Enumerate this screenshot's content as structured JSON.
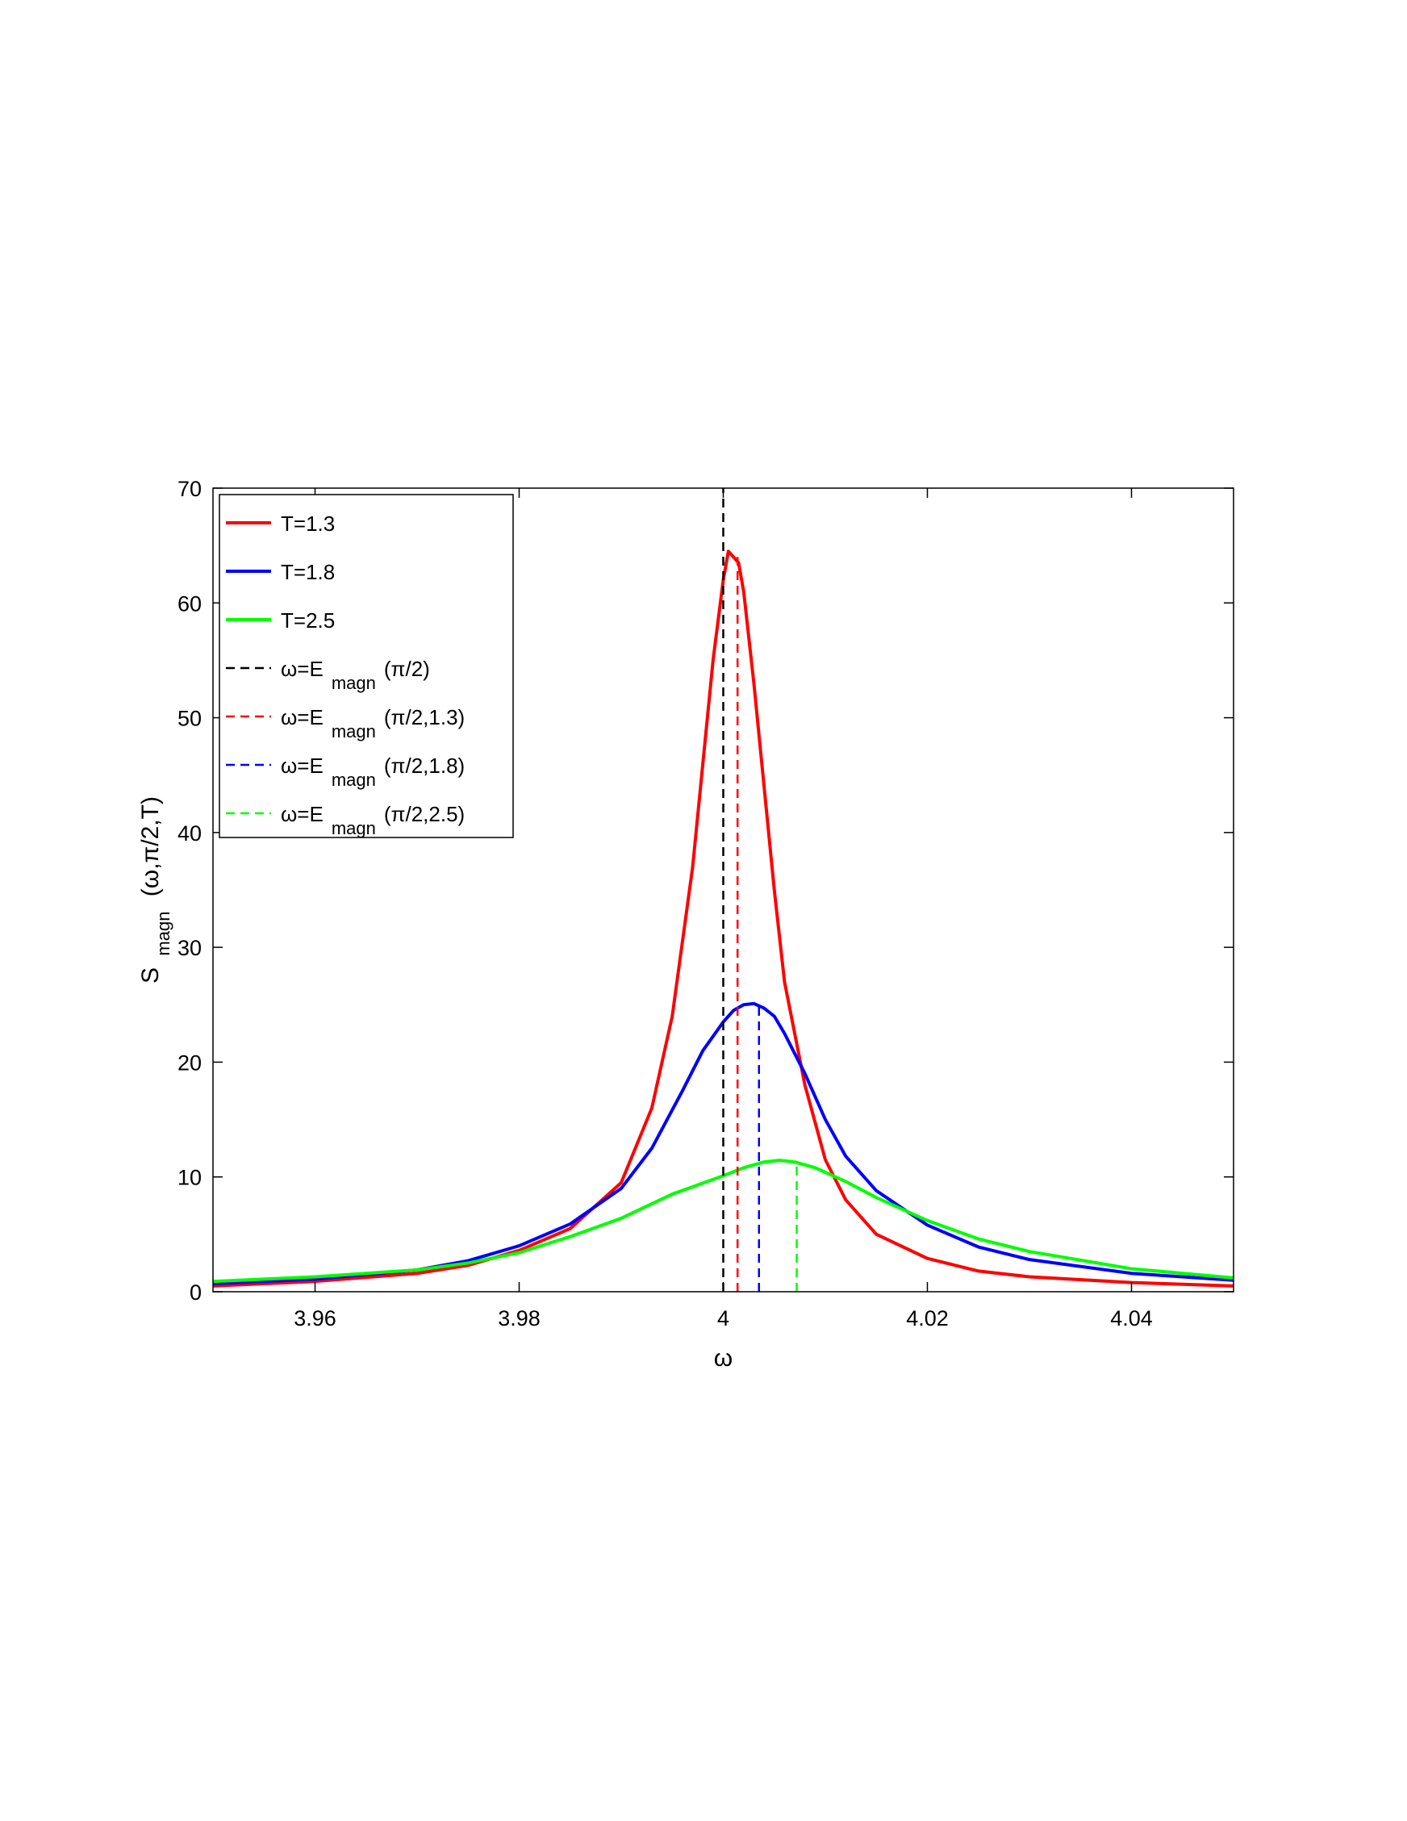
{
  "chart_data": {
    "type": "line",
    "title": "",
    "xlabel": "ω",
    "ylabel": {
      "main": "S",
      "sub": "magn",
      "args": "(ω,π/2,T)"
    },
    "xlim": [
      3.95,
      4.05
    ],
    "ylim": [
      0,
      70
    ],
    "xticks": [
      3.96,
      3.98,
      4,
      4.02,
      4.04
    ],
    "xtick_labels": [
      "3.96",
      "3.98",
      "4",
      "4.02",
      "4.04"
    ],
    "yticks": [
      0,
      10,
      20,
      30,
      40,
      50,
      60,
      70
    ],
    "ytick_labels": [
      "0",
      "10",
      "20",
      "30",
      "40",
      "50",
      "60",
      "70"
    ],
    "grid": false,
    "legend_position": "top-left",
    "series": [
      {
        "name": "T=1.3",
        "color": "#ff0000",
        "style": "solid",
        "x": [
          3.95,
          3.96,
          3.97,
          3.975,
          3.98,
          3.985,
          3.99,
          3.993,
          3.995,
          3.997,
          3.998,
          3.999,
          4.0,
          4.0005,
          4.001,
          4.0015,
          4.002,
          4.003,
          4.004,
          4.005,
          4.006,
          4.008,
          4.01,
          4.012,
          4.015,
          4.02,
          4.025,
          4.03,
          4.04,
          4.05
        ],
        "y": [
          0.5,
          0.9,
          1.6,
          2.3,
          3.6,
          5.5,
          9.5,
          16.0,
          24.0,
          37.0,
          46.0,
          55.0,
          62.0,
          64.5,
          64.0,
          63.5,
          61.0,
          53.0,
          44.0,
          35.0,
          27.0,
          18.0,
          11.5,
          8.0,
          5.0,
          2.9,
          1.8,
          1.3,
          0.8,
          0.5
        ]
      },
      {
        "name": "T=1.8",
        "color": "#0000ff",
        "style": "solid",
        "x": [
          3.95,
          3.96,
          3.97,
          3.975,
          3.98,
          3.985,
          3.99,
          3.993,
          3.996,
          3.998,
          4.0,
          4.001,
          4.002,
          4.003,
          4.004,
          4.005,
          4.006,
          4.008,
          4.01,
          4.012,
          4.015,
          4.02,
          4.025,
          4.03,
          4.04,
          4.05
        ],
        "y": [
          0.7,
          1.1,
          1.9,
          2.7,
          4.0,
          5.9,
          9.0,
          12.5,
          17.5,
          21.0,
          23.5,
          24.5,
          25.0,
          25.1,
          24.7,
          24.0,
          22.5,
          19.0,
          15.0,
          11.8,
          8.8,
          5.8,
          3.9,
          2.8,
          1.6,
          1.0
        ]
      },
      {
        "name": "T=2.5",
        "color": "#00ff00",
        "style": "solid",
        "x": [
          3.95,
          3.96,
          3.97,
          3.975,
          3.98,
          3.985,
          3.99,
          3.995,
          4.0,
          4.002,
          4.004,
          4.0055,
          4.007,
          4.009,
          4.012,
          4.015,
          4.02,
          4.025,
          4.03,
          4.04,
          4.05
        ],
        "y": [
          0.9,
          1.3,
          1.9,
          2.5,
          3.4,
          4.8,
          6.4,
          8.5,
          10.1,
          10.8,
          11.3,
          11.45,
          11.3,
          10.8,
          9.6,
          8.2,
          6.2,
          4.6,
          3.5,
          2.0,
          1.2
        ]
      },
      {
        "name": "ω=E magn (π/2)",
        "color": "#000000",
        "style": "dashed",
        "x": [
          4.0,
          4.0
        ],
        "y": [
          0,
          70
        ]
      },
      {
        "name": "ω=E magn (π/2,1.3)",
        "color": "#ff0000",
        "style": "dashed",
        "x": [
          4.0014,
          4.0014
        ],
        "y": [
          0,
          64.0
        ]
      },
      {
        "name": "ω=E magn (π/2,1.8)",
        "color": "#0000ff",
        "style": "dashed",
        "x": [
          4.0035,
          4.0035
        ],
        "y": [
          0,
          25.0
        ]
      },
      {
        "name": "ω=E magn (π/2,2.5)",
        "color": "#00ff00",
        "style": "dashed",
        "x": [
          4.0072,
          4.0072
        ],
        "y": [
          0,
          11.0
        ]
      }
    ],
    "legend": [
      {
        "main": "T=1.3",
        "sub": "",
        "tail": "",
        "color": "#ff0000",
        "style": "solid"
      },
      {
        "main": "T=1.8",
        "sub": "",
        "tail": "",
        "color": "#0000ff",
        "style": "solid"
      },
      {
        "main": "T=2.5",
        "sub": "",
        "tail": "",
        "color": "#00ff00",
        "style": "solid"
      },
      {
        "main": "ω=E",
        "sub": "magn",
        "tail": "(π/2)",
        "color": "#000000",
        "style": "dashed"
      },
      {
        "main": "ω=E",
        "sub": "magn",
        "tail": "(π/2,1.3)",
        "color": "#ff0000",
        "style": "dashed"
      },
      {
        "main": "ω=E",
        "sub": "magn",
        "tail": "(π/2,1.8)",
        "color": "#0000ff",
        "style": "dashed"
      },
      {
        "main": "ω=E",
        "sub": "magn",
        "tail": "(π/2,2.5)",
        "color": "#00ff00",
        "style": "dashed"
      }
    ]
  }
}
